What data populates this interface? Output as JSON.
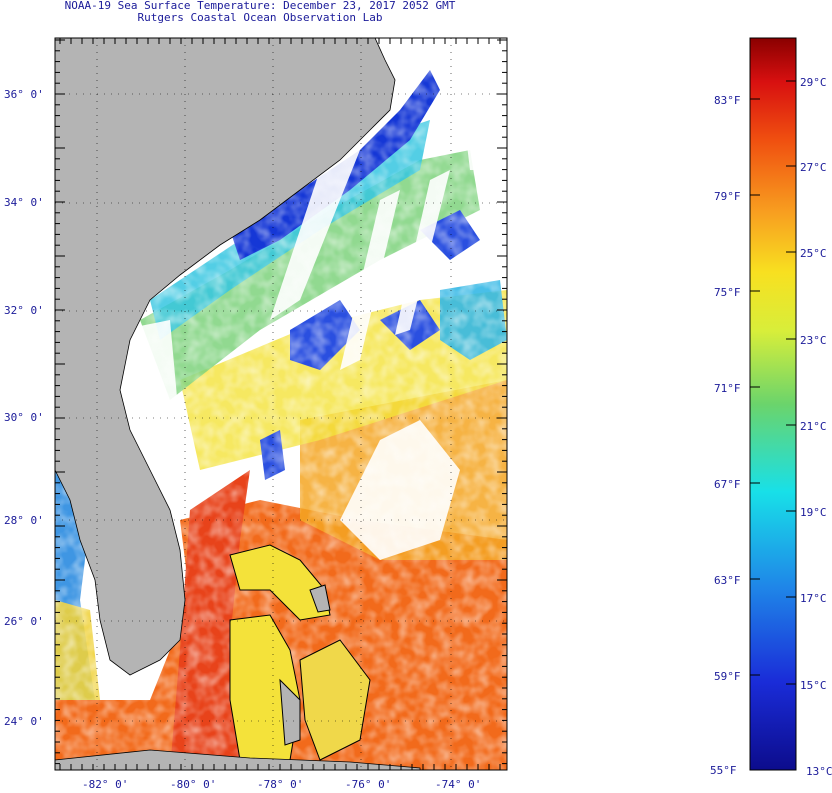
{
  "title_line1": "NOAA-19 Sea Surface Temperature:  December 23, 2017 2052 GMT",
  "title_line2": "Rutgers Coastal Ocean Observation Lab",
  "lat_labels": [
    "36° 0'",
    "34° 0'",
    "32° 0'",
    "30° 0'",
    "28° 0'",
    "26° 0'",
    "24° 0'"
  ],
  "lon_labels": [
    "-82° 0'",
    "-80° 0'",
    "-78° 0'",
    "-76° 0'",
    "-74° 0'"
  ],
  "colorbar": {
    "fahrenheit_labels": [
      "83°F",
      "79°F",
      "75°F",
      "71°F",
      "67°F",
      "63°F",
      "59°F",
      "55°F"
    ],
    "celsius_labels": [
      "29°C",
      "27°C",
      "25°C",
      "23°C",
      "21°C",
      "19°C",
      "17°C",
      "15°C",
      "13°C"
    ],
    "min_celsius": 13,
    "max_celsius": 30
  },
  "colors": {
    "land": "#b4b4b4",
    "cloud": "#ffffff",
    "text": "#1a1a99"
  }
}
